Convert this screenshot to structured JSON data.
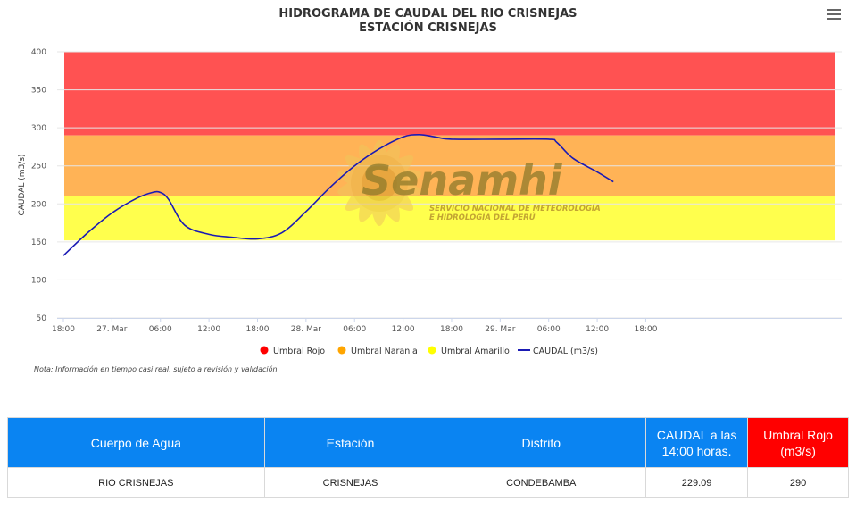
{
  "title": {
    "line1": "HIDROGRAMA DE CAUDAL DEL RIO CRISNEJAS",
    "line2": "ESTACIÓN CRISNEJAS"
  },
  "menu_icon": "hamburger-menu-icon",
  "watermark": {
    "brand": "Senamhi",
    "subtitle1": "SERVICIO NACIONAL DE METEOROLOGÍA",
    "subtitle2": "E HIDROLOGÍA DEL PERÚ"
  },
  "note": "Nota: Información en tiempo casi real, sujeto a revisión y validación",
  "chart_data": {
    "type": "line",
    "title": "HIDROGRAMA DE CAUDAL DEL RIO CRISNEJAS",
    "subtitle": "ESTACIÓN CRISNEJAS",
    "ylabel": "CAUDAL (m3/s)",
    "ylim": [
      50,
      400
    ],
    "yticks": [
      50,
      100,
      150,
      200,
      250,
      300,
      350,
      400
    ],
    "xlim": [
      "26 Mar 18:00",
      "30 Mar 19:00"
    ],
    "xticks": [
      "18:00",
      "27. Mar",
      "06:00",
      "12:00",
      "18:00",
      "28. Mar",
      "06:00",
      "12:00",
      "18:00",
      "29. Mar",
      "06:00",
      "12:00",
      "18:00"
    ],
    "grid": true,
    "legend_position": "bottom",
    "bands": [
      {
        "name": "Umbral Rojo",
        "from": 290,
        "to": 400,
        "color": "#ff5252"
      },
      {
        "name": "Umbral Naranja",
        "from": 210,
        "to": 290,
        "color": "#ffb356"
      },
      {
        "name": "Umbral Amarillo",
        "from": 152,
        "to": 210,
        "color": "#ffff4d"
      }
    ],
    "legend": [
      {
        "name": "Umbral Rojo",
        "color": "#ff0000",
        "marker": "circle"
      },
      {
        "name": "Umbral Naranja",
        "color": "#ffa500",
        "marker": "circle"
      },
      {
        "name": "Umbral Amarillo",
        "color": "#ffff00",
        "marker": "circle"
      },
      {
        "name": "CAUDAL (m3/s)",
        "color": "#1a1ab4",
        "marker": "line"
      }
    ],
    "series": [
      {
        "name": "CAUDAL (m3/s)",
        "color": "#1a1ab4",
        "x": [
          "26 Mar 18:00",
          "26 Mar 21:00",
          "27 Mar 00:00",
          "27 Mar 03:00",
          "27 Mar 05:00",
          "27 Mar 06:00",
          "27 Mar 07:00",
          "27 Mar 09:00",
          "27 Mar 12:00",
          "27 Mar 15:00",
          "27 Mar 18:00",
          "27 Mar 21:00",
          "28 Mar 00:00",
          "28 Mar 03:00",
          "28 Mar 06:00",
          "28 Mar 09:00",
          "28 Mar 12:00",
          "28 Mar 14:00",
          "28 Mar 16:00",
          "28 Mar 18:00",
          "29 Mar 00:00",
          "29 Mar 06:00",
          "29 Mar 07:00",
          "29 Mar 09:00",
          "29 Mar 12:00",
          "29 Mar 14:00"
        ],
        "values": [
          132,
          162,
          188,
          207,
          215,
          215,
          206,
          172,
          160,
          156,
          154,
          162,
          190,
          222,
          250,
          272,
          288,
          291,
          288,
          285,
          285,
          285,
          281,
          260,
          242,
          229
        ]
      }
    ]
  },
  "table": {
    "headers": {
      "cuerpo": "Cuerpo de Agua",
      "estacion": "Estación",
      "distrito": "Distrito",
      "caudal_l1": "CAUDAL a las",
      "caudal_l2": "14:00 horas.",
      "umbral_l1": "Umbral Rojo",
      "umbral_l2": "(m3/s)"
    },
    "row": {
      "cuerpo": "RIO CRISNEJAS",
      "estacion": "CRISNEJAS",
      "distrito": "CONDEBAMBA",
      "caudal": "229.09",
      "umbral": "290"
    },
    "colors": {
      "header": "#0a84f2",
      "header_red": "#ff0000"
    }
  }
}
